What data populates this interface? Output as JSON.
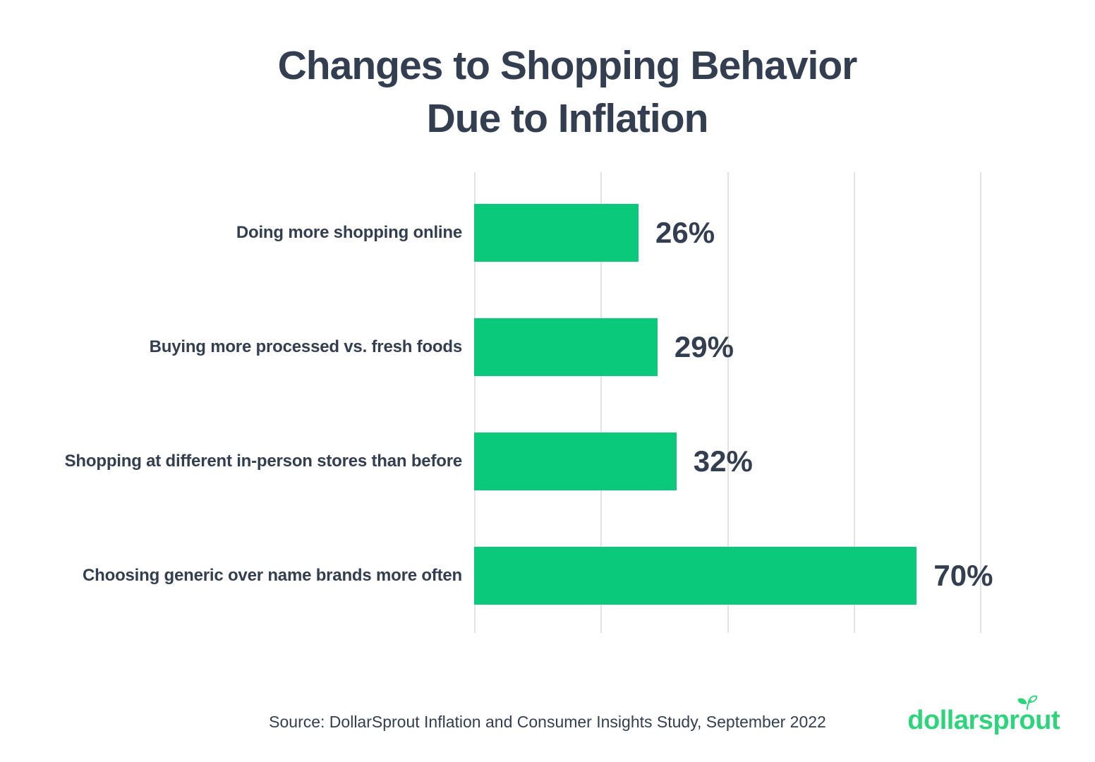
{
  "title": {
    "line1": "Changes to Shopping Behavior",
    "line2": "Due to Inflation"
  },
  "chart_data": {
    "type": "bar",
    "orientation": "horizontal",
    "title": "Changes to Shopping Behavior Due to Inflation",
    "categories": [
      "Doing more shopping online",
      "Buying more processed vs. fresh foods",
      "Shopping at different in-person stores than before",
      "Choosing generic over name brands more often"
    ],
    "values": [
      26,
      29,
      32,
      70
    ],
    "value_labels": [
      "26%",
      "29%",
      "32%",
      "70%"
    ],
    "xlabel": "",
    "ylabel": "",
    "xlim": [
      0,
      80
    ],
    "gridline_values": [
      0,
      20,
      40,
      60,
      80
    ],
    "grid": "vertical-only",
    "legend": "none",
    "bar_color": "#0bc97a",
    "text_color": "#333e50",
    "gridline_color": "#e3e3e3"
  },
  "footer": {
    "source": "Source: DollarSprout Inflation and Consumer Insights Study, September 2022",
    "logo": {
      "text": "dollarsprout",
      "part1": "dollarspr",
      "o": "o",
      "part2": "ut",
      "color": "#2ed47c",
      "icon": "sprout-leaves-icon"
    }
  }
}
